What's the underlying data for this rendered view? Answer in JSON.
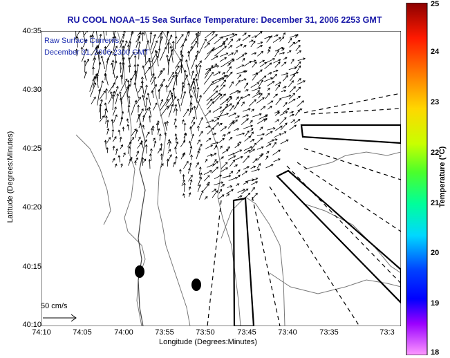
{
  "title": "RU COOL  NOAA−15  Sea Surface Temperature:  December 31, 2006 2253 GMT",
  "overlay": {
    "line1": "Raw Surface Currents",
    "line2": "December 31, 2006 2300 GMT"
  },
  "axes": {
    "xlabel": "Longitude (Degrees:Minutes)",
    "ylabel": "Latitude (Degrees:Minutes)",
    "x_ticks": [
      "74:10",
      "74:05",
      "74:00",
      "73:55",
      "73:50",
      "73:45",
      "73:40",
      "73:35",
      "73:3"
    ],
    "y_ticks": [
      "40:35",
      "40:30",
      "40:25",
      "40:20",
      "40:15",
      "40:10"
    ]
  },
  "colorbar": {
    "label": "Temperature (°C)",
    "ticks": [
      "25",
      "24",
      "23",
      "22",
      "21",
      "20",
      "19",
      "18"
    ],
    "min": 18,
    "max": 25
  },
  "scale_vector": {
    "label": "50 cm/s"
  },
  "colors": {
    "title": "#1a1aa8",
    "overlay": "#1e2fb0",
    "contour": "#777777",
    "vector": "#000000"
  },
  "stations": 2,
  "regions": {
    "coastline": "New Jersey coast (west)",
    "channels": "shipping lanes (solid outlines) and traffic separation lines (dashed)"
  }
}
